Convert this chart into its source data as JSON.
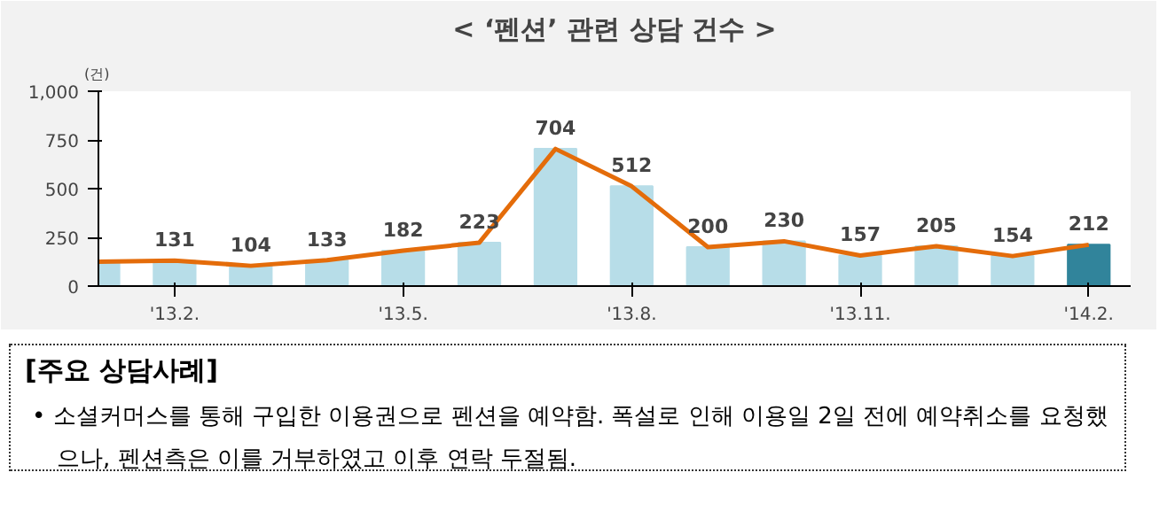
{
  "chart_data": {
    "type": "bar",
    "title": "< ‘펜션’ 관련 상담 건수 >",
    "ylabel": "(건)",
    "categories": [
      null,
      "'13.2.",
      null,
      null,
      "'13.5.",
      null,
      null,
      "'13.8.",
      null,
      null,
      "'13.11.",
      null,
      null,
      "'14.2."
    ],
    "series": [
      {
        "values": [
          125,
          131,
          104,
          133,
          182,
          223,
          704,
          512,
          200,
          230,
          157,
          205,
          154,
          212
        ],
        "colors": [
          "#b7dde8",
          "#b7dde8",
          "#b7dde8",
          "#b7dde8",
          "#b7dde8",
          "#b7dde8",
          "#b7dde8",
          "#b7dde8",
          "#b7dde8",
          "#b7dde8",
          "#b7dde8",
          "#b7dde8",
          "#b7dde8",
          "#31849b"
        ],
        "value_labels": [
          null,
          "131",
          "104",
          "133",
          "182",
          "223",
          "704",
          "512",
          "200",
          "230",
          "157",
          "205",
          "154",
          "212"
        ]
      },
      {
        "type": "line",
        "color": "#e46c0a",
        "values": [
          125,
          131,
          104,
          133,
          182,
          223,
          704,
          512,
          200,
          230,
          157,
          205,
          154,
          212
        ]
      }
    ],
    "ylim": [
      0,
      1000
    ],
    "yticks": [
      0,
      250,
      500,
      750,
      {
        "value": 1000,
        "label": "1,000"
      }
    ],
    "grid": false,
    "annotations": [
      "[주요  상담사례]",
      "•  소셜커머스를 통해 구입한 이용권으로 펜션을 예약함. 폭설로 인해 이용일 2일 전에 예약취소를 요청했으나, 펜션측은 이를 거부하였고 이후 연락 두절됨."
    ]
  }
}
